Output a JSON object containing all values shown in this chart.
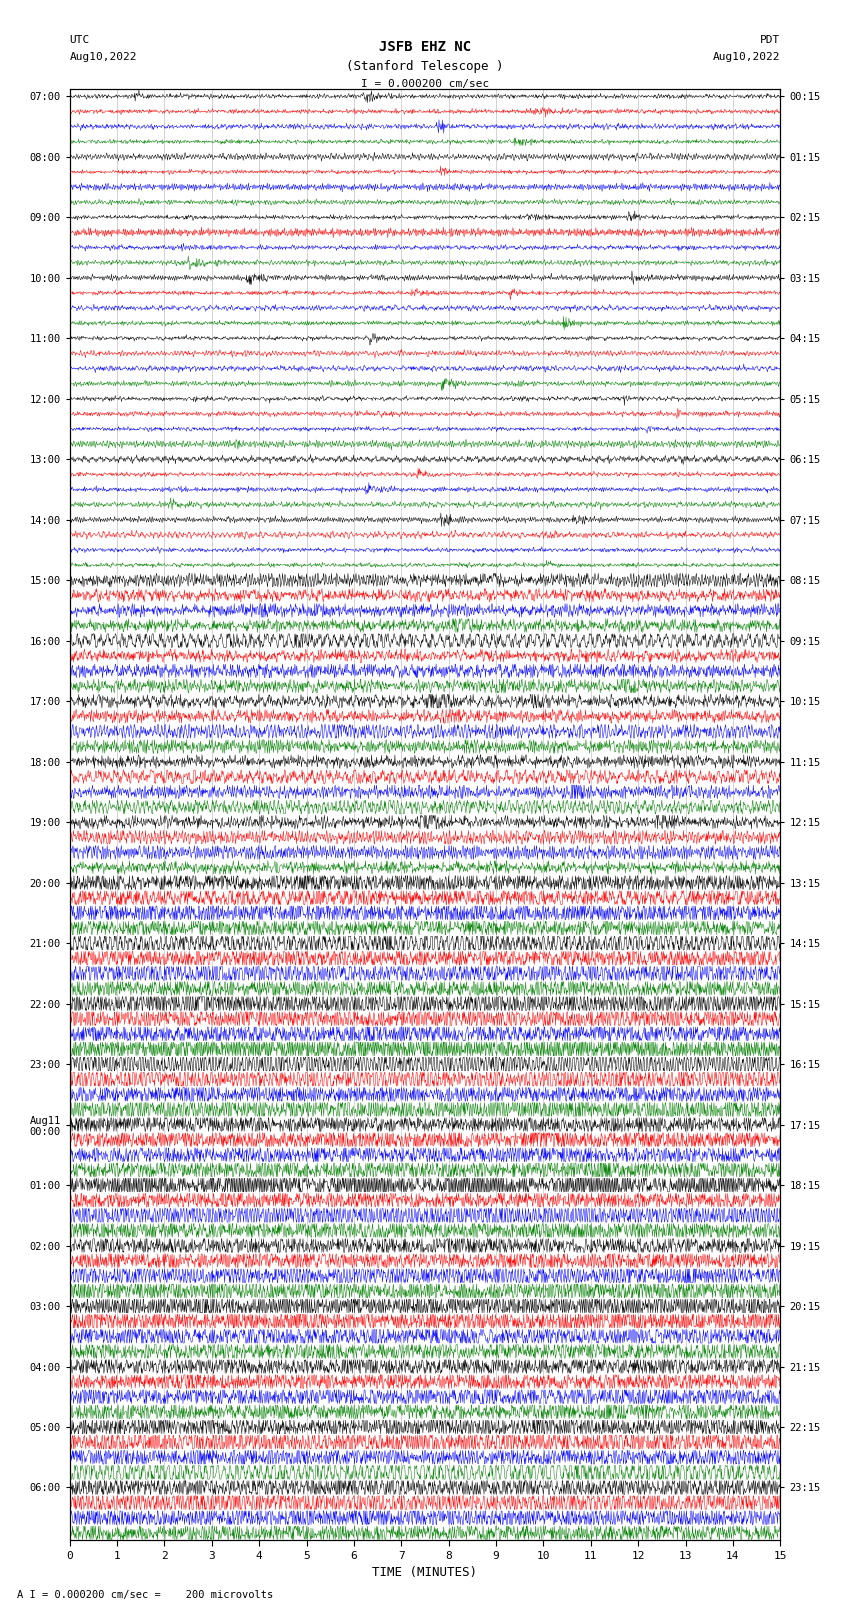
{
  "title_line1": "JSFB EHZ NC",
  "title_line2": "(Stanford Telescope )",
  "scale_label": "I = 0.000200 cm/sec",
  "left_label_top": "UTC",
  "left_label_date": "Aug10,2022",
  "right_label_top": "PDT",
  "right_label_date": "Aug10,2022",
  "xlabel": "TIME (MINUTES)",
  "footer": "A I = 0.000200 cm/sec =    200 microvolts",
  "left_times_labeled": [
    "07:00",
    "08:00",
    "09:00",
    "10:00",
    "11:00",
    "12:00",
    "13:00",
    "14:00",
    "15:00",
    "16:00",
    "17:00",
    "18:00",
    "19:00",
    "20:00",
    "21:00",
    "22:00",
    "23:00",
    "Aug11\n00:00",
    "01:00",
    "02:00",
    "03:00",
    "04:00",
    "05:00",
    "06:00"
  ],
  "right_times_labeled": [
    "00:15",
    "01:15",
    "02:15",
    "03:15",
    "04:15",
    "05:15",
    "06:15",
    "07:15",
    "08:15",
    "09:15",
    "10:15",
    "11:15",
    "12:15",
    "13:15",
    "14:15",
    "15:15",
    "16:15",
    "17:15",
    "18:15",
    "19:15",
    "20:15",
    "21:15",
    "22:15",
    "23:15"
  ],
  "n_hours": 24,
  "n_traces_per_hour": 4,
  "n_cols": 1500,
  "colors": [
    "black",
    "red",
    "blue",
    "green"
  ],
  "bg_color": "white",
  "figsize": [
    8.5,
    16.13
  ],
  "dpi": 100,
  "quiet_hours": 8,
  "semi_active_hours": 5,
  "active_hours": 11
}
